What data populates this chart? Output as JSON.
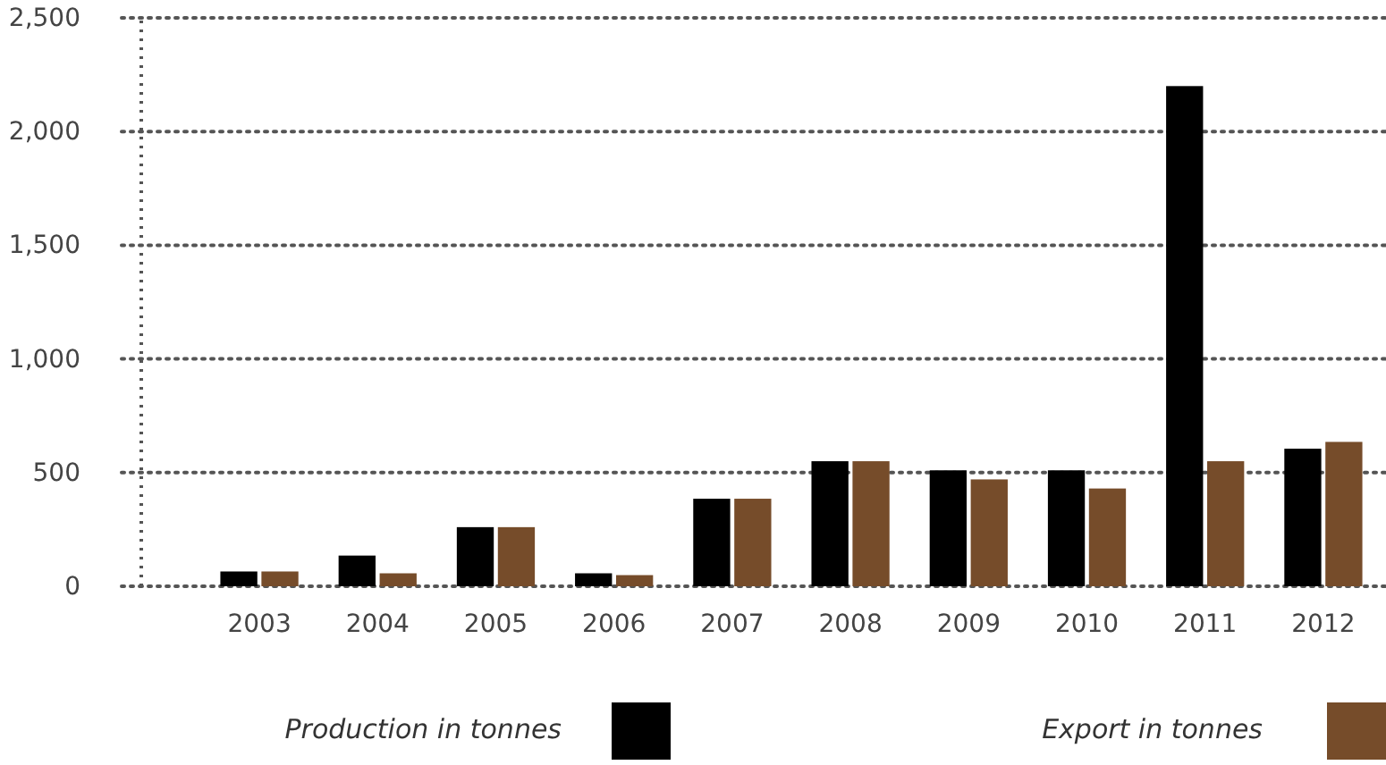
{
  "chart_data": {
    "type": "bar",
    "categories": [
      "2003",
      "2004",
      "2005",
      "2006",
      "2007",
      "2008",
      "2009",
      "2010",
      "2011",
      "2012"
    ],
    "series": [
      {
        "name": "Production in tonnes",
        "color": "#000000",
        "values": [
          65,
          135,
          260,
          57,
          385,
          550,
          510,
          510,
          2200,
          605
        ]
      },
      {
        "name": "Export in tonnes",
        "color": "#764c2a",
        "values": [
          65,
          57,
          260,
          49,
          385,
          550,
          470,
          430,
          550,
          635
        ]
      }
    ],
    "ylim": [
      0,
      2500
    ],
    "yticks": [
      0,
      {
        "value": 500,
        "label": "500"
      },
      {
        "value": 1000,
        "label": "1,000"
      },
      {
        "value": 1500,
        "label": "1,500"
      },
      {
        "value": 2000,
        "label": "2,000"
      },
      {
        "value": 2500,
        "label": "2,500"
      }
    ],
    "grid": "y",
    "legend": "bottom"
  }
}
